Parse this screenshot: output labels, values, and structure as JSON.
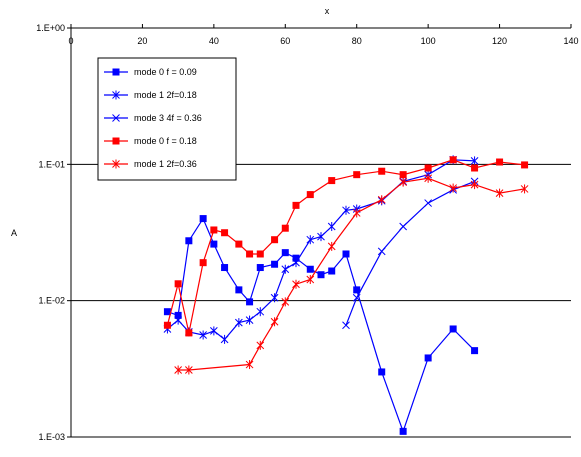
{
  "chart_data": {
    "type": "scatter",
    "title": "",
    "xlabel": "x",
    "ylabel": "A",
    "xlim": [
      0,
      140
    ],
    "ylim": [
      0.001,
      1
    ],
    "yscale": "log",
    "x_ticks": [
      0,
      20,
      40,
      60,
      80,
      100,
      120,
      140
    ],
    "x_tick_labels": [
      "0",
      "20",
      "40",
      "60",
      "80",
      "100",
      "120",
      "140"
    ],
    "y_ticks": [
      1,
      0.1,
      0.01,
      0.001
    ],
    "y_tick_labels": [
      "1.E+00",
      "1.E-01",
      "1.E-02",
      "1.E-03"
    ],
    "x_axis_position": "top",
    "grid": "horizontal at y decades",
    "legend_position": "upper-left",
    "series": [
      {
        "name": "mode 0  f = 0.09",
        "color": "#0000ff",
        "marker": "square",
        "x": [
          27,
          30,
          33,
          37,
          40,
          43,
          47,
          50,
          53,
          57,
          60,
          63,
          67,
          70,
          73,
          77,
          80,
          87,
          93,
          100,
          107,
          113
        ],
        "y": [
          0.0083,
          0.0078,
          0.0275,
          0.04,
          0.026,
          0.0175,
          0.012,
          0.0098,
          0.0175,
          0.0185,
          0.0225,
          0.0205,
          0.017,
          0.0155,
          0.0165,
          0.022,
          0.012,
          0.003,
          0.0011,
          0.0038,
          0.0062,
          0.0043
        ]
      },
      {
        "name": "mode 1  2f=0.18",
        "color": "#0000ff",
        "marker": "star",
        "x": [
          27,
          30,
          33,
          37,
          40,
          43,
          47,
          50,
          53,
          57,
          60,
          63,
          67,
          70,
          73,
          77,
          80,
          87,
          93,
          100,
          107,
          113
        ],
        "y": [
          0.0062,
          0.0072,
          0.0059,
          0.0056,
          0.006,
          0.0052,
          0.0069,
          0.0072,
          0.0083,
          0.0105,
          0.017,
          0.019,
          0.028,
          0.0295,
          0.035,
          0.046,
          0.047,
          0.054,
          0.075,
          0.084,
          0.108,
          0.106
        ]
      },
      {
        "name": "mode 3  4f = 0.36",
        "color": "#0000ff",
        "marker": "x",
        "x": [
          77,
          80,
          87,
          93,
          100,
          107,
          113
        ],
        "y": [
          0.0066,
          0.0105,
          0.023,
          0.035,
          0.052,
          0.065,
          0.075
        ]
      },
      {
        "name": "mode 0  f = 0.18",
        "color": "#ff0000",
        "marker": "square",
        "x": [
          27,
          30,
          33,
          37,
          40,
          43,
          47,
          50,
          53,
          57,
          60,
          63,
          67,
          73,
          80,
          87,
          93,
          100,
          107,
          113,
          120,
          127
        ],
        "y": [
          0.0066,
          0.0133,
          0.0058,
          0.019,
          0.033,
          0.0315,
          0.026,
          0.022,
          0.022,
          0.028,
          0.034,
          0.05,
          0.06,
          0.076,
          0.084,
          0.089,
          0.084,
          0.094,
          0.108,
          0.094,
          0.104,
          0.099
        ]
      },
      {
        "name": "mode 1  2f=0.36",
        "color": "#ff0000",
        "marker": "star",
        "x": [
          30,
          33,
          50,
          53,
          57,
          60,
          63,
          67,
          73,
          80,
          87,
          93,
          100,
          107,
          113,
          120,
          127
        ],
        "y": [
          0.0031,
          0.0031,
          0.0034,
          0.0047,
          0.007,
          0.0098,
          0.0132,
          0.0143,
          0.025,
          0.044,
          0.055,
          0.074,
          0.079,
          0.067,
          0.071,
          0.0615,
          0.066
        ]
      }
    ]
  }
}
